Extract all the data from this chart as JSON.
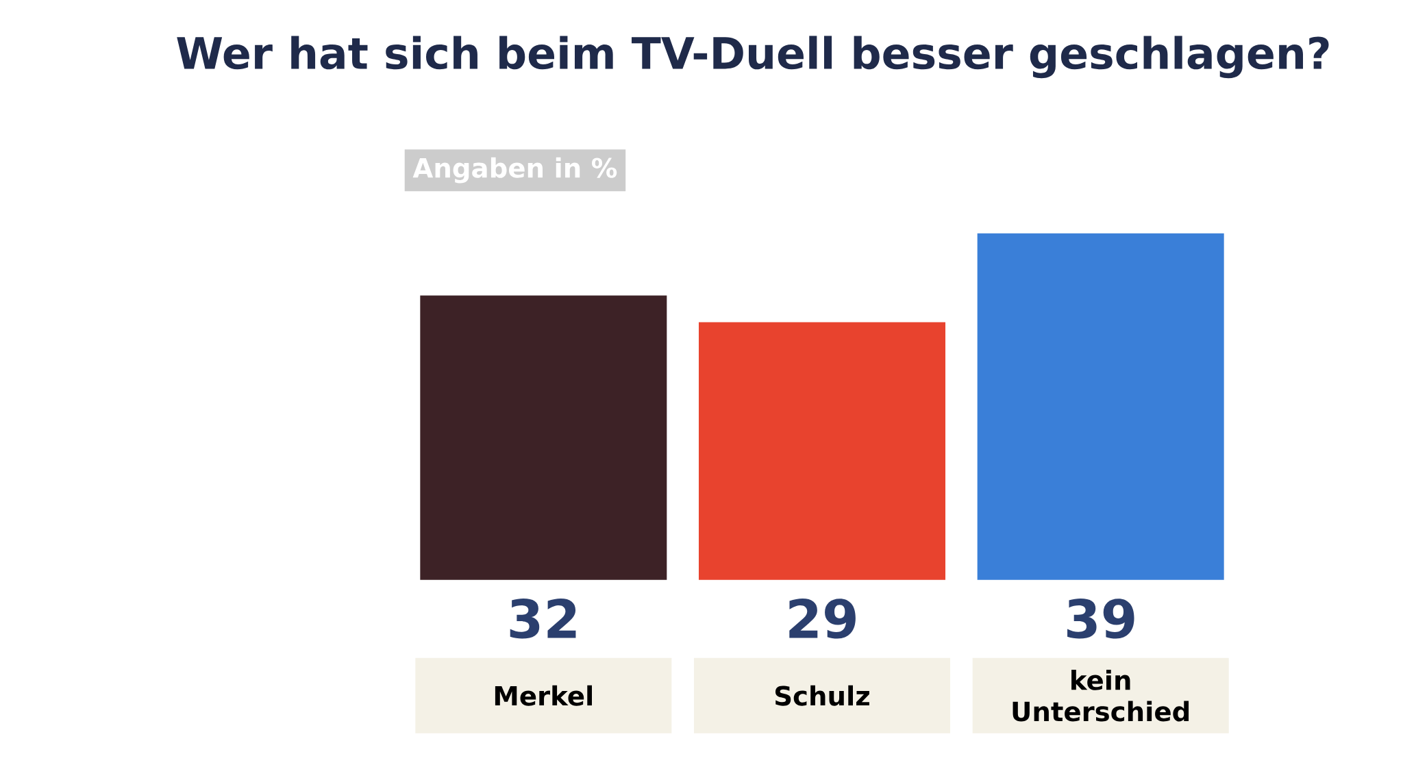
{
  "chart_data": {
    "type": "bar",
    "title": "Wer hat sich beim TV-Duell besser geschlagen?",
    "subtitle": "Angaben in %",
    "categories": [
      "Merkel",
      "Schulz",
      "kein Unterschied"
    ],
    "values": [
      32,
      29,
      39
    ],
    "colors": [
      "#3d2226",
      "#e8432e",
      "#3a7fd8"
    ],
    "data_labels": true
  }
}
